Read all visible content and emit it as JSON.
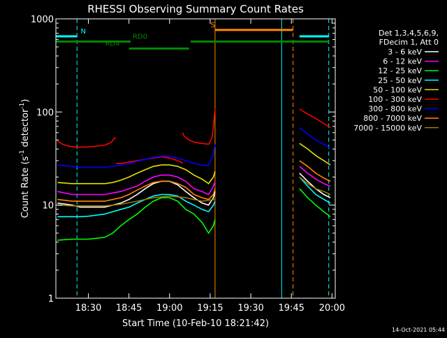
{
  "chart_data": {
    "type": "line",
    "title": "RHESSI Observing Summary Count Rates",
    "xlabel": "Start Time (10-Feb-10 18:21:42)",
    "ylabel_prefix": "Count Rate (s",
    "ylabel_exp1": "-1",
    "ylabel_mid": " detector",
    "ylabel_exp2": "-1",
    "ylabel_suffix": ")",
    "footer_stamp": "14-Oct-2021 05:44",
    "yscale": "log",
    "ylim": [
      1,
      1000
    ],
    "xlim_minutes": [
      18.3,
      20.02
    ],
    "x_ticks": [
      {
        "label": "18:30",
        "value": 18.5
      },
      {
        "label": "18:45",
        "value": 18.75
      },
      {
        "label": "19:00",
        "value": 19.0
      },
      {
        "label": "19:15",
        "value": 19.25
      },
      {
        "label": "19:30",
        "value": 19.5
      },
      {
        "label": "19:45",
        "value": 19.75
      },
      {
        "label": "20:00",
        "value": 20.0
      }
    ],
    "y_ticks": [
      {
        "label": "1",
        "value": 1
      },
      {
        "label": "10",
        "value": 10
      },
      {
        "label": "100",
        "value": 100
      },
      {
        "label": "1000",
        "value": 1000
      }
    ],
    "legend_header": [
      "Det 1,3,4,5,6,9,",
      "FDecim 1, Att 0"
    ],
    "series": [
      {
        "name": "3 - 6 keV",
        "color": "#ffffff",
        "segments": [
          {
            "x": [
              18.31,
              18.4,
              18.45,
              18.5,
              18.55,
              18.6,
              18.65,
              18.7,
              18.75,
              18.8,
              18.85,
              18.9,
              18.95,
              19.0,
              19.05,
              19.1,
              19.15,
              19.2,
              19.24,
              19.27,
              19.28
            ],
            "y": [
              10.5,
              10,
              9.5,
              9.5,
              9.5,
              9.5,
              10,
              10.5,
              11.5,
              13,
              15,
              17,
              18,
              18,
              16.5,
              14,
              12,
              10.5,
              10,
              12,
              14
            ]
          },
          {
            "x": [
              19.8,
              19.85,
              19.9,
              19.95,
              19.99
            ],
            "y": [
              22,
              18,
              15,
              13,
              12
            ]
          }
        ]
      },
      {
        "name": "6 - 12 keV",
        "color": "#ff00ff",
        "segments": [
          {
            "x": [
              18.31,
              18.4,
              18.45,
              18.5,
              18.55,
              18.6,
              18.65,
              18.7,
              18.75,
              18.8,
              18.85,
              18.9,
              18.95,
              19.0,
              19.05,
              19.1,
              19.15,
              19.2,
              19.24,
              19.27,
              19.28
            ],
            "y": [
              14,
              13,
              13,
              13,
              13,
              13,
              13.5,
              14,
              15,
              16,
              18,
              20,
              21,
              21,
              20,
              18,
              15,
              14,
              13,
              16,
              18
            ]
          },
          {
            "x": [
              19.8,
              19.85,
              19.9,
              19.95,
              19.99
            ],
            "y": [
              26,
              22,
              19,
              17,
              16
            ]
          }
        ]
      },
      {
        "name": "12 - 25 keV",
        "color": "#00ff00",
        "segments": [
          {
            "x": [
              18.31,
              18.4,
              18.45,
              18.5,
              18.55,
              18.6,
              18.65,
              18.7,
              18.75,
              18.8,
              18.85,
              18.9,
              18.95,
              19.0,
              19.05,
              19.1,
              19.15,
              19.2,
              19.24,
              19.27,
              19.28
            ],
            "y": [
              4.2,
              4.3,
              4.3,
              4.3,
              4.4,
              4.5,
              5,
              6,
              7,
              8,
              9.5,
              11,
              12,
              12,
              11,
              9,
              8,
              6.5,
              5,
              6,
              7
            ]
          },
          {
            "x": [
              19.8,
              19.85,
              19.9,
              19.95,
              19.99
            ],
            "y": [
              15,
              12,
              10,
              8.5,
              7.5
            ]
          }
        ]
      },
      {
        "name": "25 - 50 keV",
        "color": "#00ffff",
        "segments": [
          {
            "x": [
              18.31,
              18.4,
              18.45,
              18.5,
              18.55,
              18.6,
              18.65,
              18.7,
              18.75,
              18.8,
              18.85,
              18.9,
              18.95,
              19.0,
              19.05,
              19.1,
              19.15,
              19.2,
              19.24,
              19.27,
              19.28
            ],
            "y": [
              7.5,
              7.5,
              7.5,
              7.6,
              7.8,
              8,
              8.5,
              9,
              9.5,
              10.5,
              11.5,
              12.5,
              13,
              13,
              12.5,
              11,
              10,
              9,
              8.5,
              10,
              11
            ]
          },
          {
            "x": [
              19.8,
              19.85,
              19.9,
              19.95,
              19.99
            ],
            "y": [
              20,
              16,
              13,
              11.5,
              10.5
            ]
          }
        ]
      },
      {
        "name": "50 - 100 keV",
        "color": "#e0e000",
        "segments": [
          {
            "x": [
              18.31,
              18.4,
              18.45,
              18.5,
              18.55,
              18.6,
              18.65,
              18.7,
              18.75,
              18.8,
              18.85,
              18.9,
              18.95,
              19.0,
              19.05,
              19.1,
              19.15,
              19.2,
              19.24,
              19.27,
              19.28
            ],
            "y": [
              17.5,
              17,
              17,
              17,
              17,
              17,
              17.5,
              18.5,
              20,
              22,
              24,
              26,
              27,
              27,
              26,
              24,
              21,
              19,
              17,
              20,
              23
            ]
          },
          {
            "x": [
              19.8,
              19.85,
              19.9,
              19.95,
              19.99
            ],
            "y": [
              46,
              40,
              34,
              30,
              27
            ]
          }
        ]
      },
      {
        "name": "100 - 300 keV",
        "color": "#ff0000",
        "segments": [
          {
            "x": [
              18.31,
              18.34,
              18.38,
              18.42,
              18.46,
              18.5,
              18.55,
              18.6,
              18.64,
              18.66,
              18.67
            ],
            "y": [
              49,
              45,
              43,
              42,
              42,
              42,
              43,
              44,
              47,
              52,
              53
            ]
          },
          {
            "x": [
              18.67,
              18.7,
              18.75,
              18.8,
              18.85,
              18.9,
              18.95,
              19.0,
              19.05,
              19.07,
              19.08
            ],
            "y": [
              28,
              28,
              29,
              30,
              31,
              32,
              33,
              32,
              30,
              29,
              28
            ]
          },
          {
            "x": [
              19.08,
              19.09,
              19.12,
              19.16,
              19.2,
              19.24,
              19.26,
              19.27,
              19.28
            ],
            "y": [
              60,
              55,
              50,
              47,
              46,
              45,
              52,
              70,
              110
            ]
          },
          {
            "x": [
              19.8,
              19.81,
              19.85,
              19.9,
              19.95,
              19.99
            ],
            "y": [
              108,
              105,
              95,
              85,
              75,
              68
            ]
          }
        ]
      },
      {
        "name": "300 - 800 keV",
        "color": "#0000ff",
        "segments": [
          {
            "x": [
              18.31,
              18.4,
              18.45,
              18.5,
              18.55,
              18.6,
              18.65,
              18.7,
              18.75,
              18.8,
              18.85,
              18.9,
              18.95,
              19.0,
              19.05,
              19.1,
              19.15,
              19.2,
              19.24,
              19.27,
              19.28
            ],
            "y": [
              27,
              26,
              25.5,
              25.5,
              25.5,
              25.5,
              26,
              27,
              28,
              29.5,
              31,
              32.5,
              33.5,
              33.5,
              32,
              30,
              28,
              27,
              26.5,
              35,
              45
            ]
          },
          {
            "x": [
              19.8,
              19.85,
              19.9,
              19.95,
              19.99
            ],
            "y": [
              68,
              58,
              50,
              45,
              41
            ]
          }
        ]
      },
      {
        "name": "800 - 7000 keV",
        "color": "#ff8800",
        "segments": [
          {
            "x": [
              18.31,
              18.4,
              18.45,
              18.5,
              18.55,
              18.6,
              18.65,
              18.7,
              18.75,
              18.8,
              18.85,
              18.9,
              18.95,
              19.0,
              19.05,
              19.1,
              19.15,
              19.2,
              19.24,
              19.27,
              19.28
            ],
            "y": [
              11.5,
              11,
              11,
              11,
              11,
              11,
              11.5,
              12,
              13,
              14.5,
              16,
              17.5,
              18,
              18,
              17,
              15.5,
              13,
              12,
              11.5,
              13,
              15
            ]
          },
          {
            "x": [
              19.8,
              19.85,
              19.9,
              19.95,
              19.99
            ],
            "y": [
              30,
              26,
              22,
              19.5,
              18
            ]
          }
        ]
      },
      {
        "name": "7000 - 15000 keV",
        "color": "#a07800",
        "segments": [
          {
            "x": [
              18.31,
              18.4,
              18.5,
              18.6,
              18.7,
              18.8,
              18.9,
              19.0,
              19.1,
              19.2,
              19.28
            ],
            "y": [
              10,
              9.8,
              9.8,
              9.8,
              10.2,
              11,
              12,
              12.5,
              12,
              11,
              11.5
            ]
          },
          {
            "x": [
              19.8,
              19.85,
              19.9,
              19.95,
              19.99
            ],
            "y": [
              20,
              17,
              15,
              14,
              13
            ]
          }
        ]
      }
    ],
    "state_bars": [
      {
        "label": "N",
        "color": "#00ffff",
        "y": 650,
        "segments": [
          [
            18.3,
            18.43
          ],
          [
            19.8,
            19.98
          ]
        ],
        "label_x": 18.44
      },
      {
        "label": "RD0",
        "color": "#008800",
        "y": 570,
        "segments": [
          [
            18.3,
            18.76
          ],
          [
            19.13,
            19.98
          ]
        ],
        "label_x": 18.76
      },
      {
        "label": "RD4",
        "color": "#008800",
        "y": 480,
        "segments": [
          [
            18.75,
            19.12
          ]
        ],
        "label_x": 18.59
      },
      {
        "label": "S",
        "color": "#ff8800",
        "y": 760,
        "segments": [
          [
            19.28,
            19.76
          ]
        ],
        "label_x": 19.24
      }
    ],
    "markers": [
      {
        "x": 18.3,
        "color": "#00ffff",
        "style": "solid"
      },
      {
        "x": 18.43,
        "color": "#00ffff",
        "style": "dashed"
      },
      {
        "x": 19.28,
        "color": "#ff8800",
        "style": "solid"
      },
      {
        "x": 19.76,
        "color": "#ff8800",
        "style": "dashed"
      },
      {
        "x": 19.69,
        "color": "#00ffff",
        "style": "solid"
      },
      {
        "x": 19.98,
        "color": "#00ffff",
        "style": "dashed"
      }
    ]
  }
}
